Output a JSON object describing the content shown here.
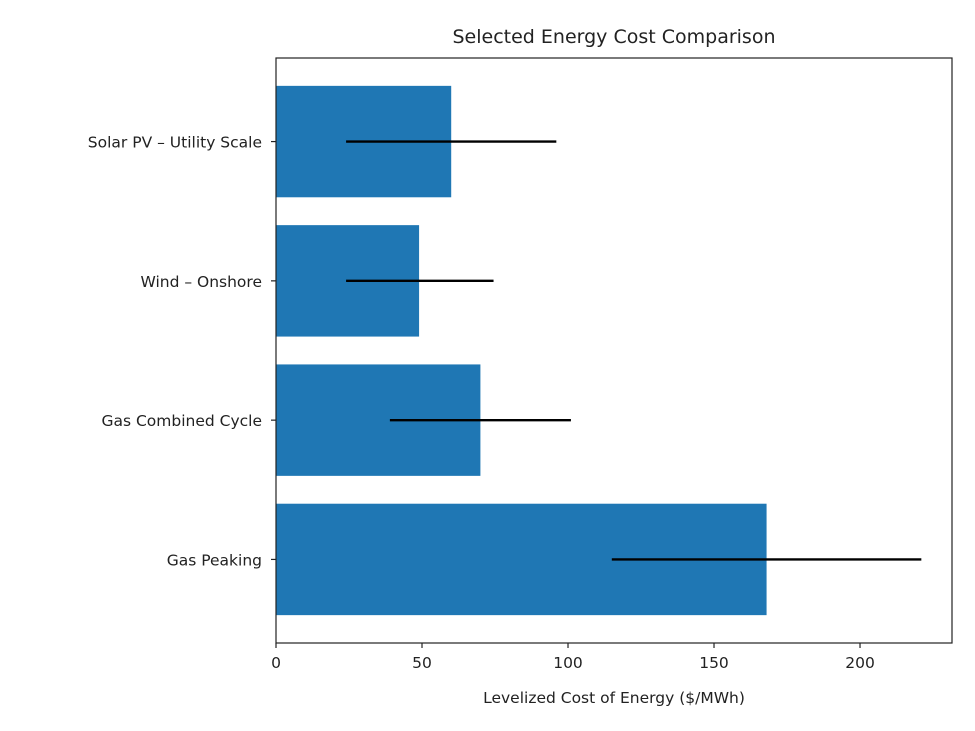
{
  "chart_data": {
    "type": "bar",
    "orientation": "horizontal",
    "title": "Selected Energy Cost Comparison",
    "xlabel": "Levelized Cost of Energy ($/MWh)",
    "ylabel": "",
    "categories": [
      "Gas Peaking",
      "Gas Combined Cycle",
      "Wind – Onshore",
      "Solar PV – Utility Scale"
    ],
    "values": [
      168,
      70,
      49,
      60
    ],
    "error_low": [
      115,
      39,
      24,
      24
    ],
    "error_high": [
      221,
      101,
      74.5,
      96
    ],
    "xlim": [
      0,
      231.5
    ],
    "xticks": [
      0,
      50,
      100,
      150,
      200
    ],
    "xtick_labels": [
      "0",
      "50",
      "100",
      "150",
      "200"
    ],
    "grid": false,
    "bar_color": "#1f77b4",
    "error_color": "#000000"
  }
}
